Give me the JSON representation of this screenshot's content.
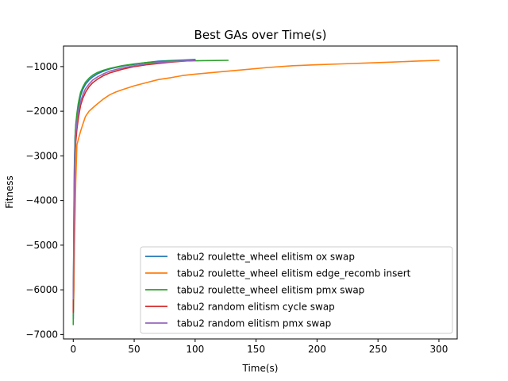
{
  "chart_data": {
    "type": "line",
    "title": "Best GAs over Time(s)",
    "xlabel": "Time(s)",
    "ylabel": "Fitness",
    "xlim": [
      -8,
      315
    ],
    "ylim": [
      -7100,
      -540
    ],
    "x_ticks": [
      0,
      50,
      100,
      150,
      200,
      250,
      300
    ],
    "y_ticks": [
      -7000,
      -6000,
      -5000,
      -4000,
      -3000,
      -2000,
      -1000
    ],
    "x_tick_labels": [
      "0",
      "50",
      "100",
      "150",
      "200",
      "250",
      "300"
    ],
    "y_tick_labels": [
      "−7000",
      "−6000",
      "−5000",
      "−4000",
      "−3000",
      "−2000",
      "−1000"
    ],
    "grid": false,
    "legend_position": "lower-right",
    "series": [
      {
        "name": "tabu2 roulette_wheel elitism ox swap",
        "color": "#1f77b4",
        "points": [
          [
            0,
            -6650
          ],
          [
            0.5,
            -4200
          ],
          [
            1,
            -3100
          ],
          [
            1.5,
            -2550
          ],
          [
            2,
            -2350
          ],
          [
            3,
            -2150
          ],
          [
            4,
            -1950
          ],
          [
            5,
            -1780
          ],
          [
            6,
            -1650
          ],
          [
            8,
            -1500
          ],
          [
            10,
            -1400
          ],
          [
            13,
            -1300
          ],
          [
            16,
            -1230
          ],
          [
            20,
            -1160
          ],
          [
            25,
            -1100
          ],
          [
            30,
            -1050
          ],
          [
            40,
            -990
          ],
          [
            50,
            -950
          ],
          [
            60,
            -910
          ],
          [
            70,
            -880
          ],
          [
            80,
            -865
          ],
          [
            90,
            -855
          ],
          [
            100,
            -840
          ]
        ]
      },
      {
        "name": "tabu2 roulette_wheel elitism edge_recomb insert",
        "color": "#ff7f0e",
        "points": [
          [
            0,
            -6500
          ],
          [
            0.5,
            -6000
          ],
          [
            1,
            -5000
          ],
          [
            2,
            -3600
          ],
          [
            3,
            -2750
          ],
          [
            4,
            -2650
          ],
          [
            6,
            -2450
          ],
          [
            8,
            -2280
          ],
          [
            10,
            -2120
          ],
          [
            13,
            -2000
          ],
          [
            17,
            -1900
          ],
          [
            20,
            -1830
          ],
          [
            25,
            -1720
          ],
          [
            30,
            -1630
          ],
          [
            35,
            -1570
          ],
          [
            40,
            -1520
          ],
          [
            50,
            -1430
          ],
          [
            60,
            -1360
          ],
          [
            70,
            -1290
          ],
          [
            80,
            -1250
          ],
          [
            90,
            -1200
          ],
          [
            100,
            -1170
          ],
          [
            120,
            -1120
          ],
          [
            140,
            -1070
          ],
          [
            160,
            -1020
          ],
          [
            180,
            -980
          ],
          [
            200,
            -960
          ],
          [
            220,
            -940
          ],
          [
            240,
            -920
          ],
          [
            260,
            -900
          ],
          [
            280,
            -880
          ],
          [
            300,
            -860
          ]
        ]
      },
      {
        "name": "tabu2 roulette_wheel elitism pmx swap",
        "color": "#2ca02c",
        "points": [
          [
            0,
            -6780
          ],
          [
            0.5,
            -4500
          ],
          [
            1,
            -3200
          ],
          [
            1.5,
            -2600
          ],
          [
            2,
            -2300
          ],
          [
            3,
            -2050
          ],
          [
            4,
            -1850
          ],
          [
            5,
            -1700
          ],
          [
            6,
            -1580
          ],
          [
            8,
            -1450
          ],
          [
            10,
            -1350
          ],
          [
            13,
            -1260
          ],
          [
            16,
            -1190
          ],
          [
            20,
            -1130
          ],
          [
            25,
            -1080
          ],
          [
            30,
            -1040
          ],
          [
            40,
            -980
          ],
          [
            50,
            -940
          ],
          [
            60,
            -910
          ],
          [
            70,
            -890
          ],
          [
            80,
            -880
          ],
          [
            100,
            -870
          ],
          [
            127,
            -860
          ]
        ]
      },
      {
        "name": "tabu2 random elitism cycle swap",
        "color": "#d62728",
        "points": [
          [
            0,
            -6500
          ],
          [
            0.5,
            -5000
          ],
          [
            1,
            -3800
          ],
          [
            1.5,
            -3000
          ],
          [
            2,
            -2700
          ],
          [
            3,
            -2400
          ],
          [
            4,
            -2200
          ],
          [
            5,
            -2020
          ],
          [
            6,
            -1870
          ],
          [
            8,
            -1700
          ],
          [
            10,
            -1580
          ],
          [
            13,
            -1450
          ],
          [
            16,
            -1360
          ],
          [
            20,
            -1280
          ],
          [
            25,
            -1200
          ],
          [
            30,
            -1140
          ],
          [
            40,
            -1060
          ],
          [
            50,
            -1000
          ],
          [
            60,
            -960
          ],
          [
            70,
            -930
          ],
          [
            80,
            -900
          ],
          [
            90,
            -880
          ],
          [
            100,
            -860
          ]
        ]
      },
      {
        "name": "tabu2 random elitism pmx swap",
        "color": "#9467bd",
        "points": [
          [
            0,
            -6200
          ],
          [
            0.5,
            -4600
          ],
          [
            1,
            -3500
          ],
          [
            1.5,
            -2800
          ],
          [
            2,
            -2500
          ],
          [
            3,
            -2250
          ],
          [
            4,
            -2050
          ],
          [
            5,
            -1900
          ],
          [
            6,
            -1780
          ],
          [
            8,
            -1620
          ],
          [
            10,
            -1500
          ],
          [
            13,
            -1390
          ],
          [
            16,
            -1300
          ],
          [
            20,
            -1230
          ],
          [
            25,
            -1160
          ],
          [
            30,
            -1100
          ],
          [
            40,
            -1030
          ],
          [
            50,
            -980
          ],
          [
            60,
            -940
          ],
          [
            70,
            -910
          ],
          [
            80,
            -890
          ],
          [
            90,
            -875
          ],
          [
            100,
            -860
          ]
        ]
      }
    ]
  }
}
